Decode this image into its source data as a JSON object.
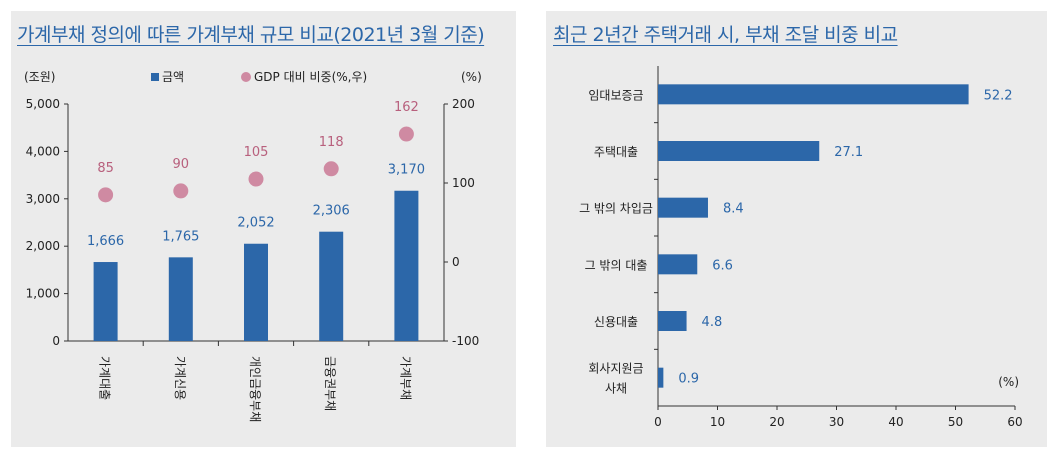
{
  "colors": {
    "bar": "#2c67a9",
    "dot": "#cf8aa2",
    "label_blue": "#2c67a9",
    "label_pink": "#b8607d",
    "axis": "#333333"
  },
  "chart_data": [
    {
      "type": "bar",
      "title": "가계부채 정의에 따른 가계부채 규모 비교(2021년 3월 기준)",
      "categories": [
        "가계대출",
        "가계신용",
        "개인금융부채",
        "금융권부채",
        "가계부채"
      ],
      "series": [
        {
          "name": "금액",
          "type": "bar",
          "axis": "left",
          "values": [
            1666,
            1765,
            2052,
            2306,
            3170
          ],
          "labels": [
            "1,666",
            "1,765",
            "2,052",
            "2,306",
            "3,170"
          ]
        },
        {
          "name": "GDP 대비 비중(%,우)",
          "type": "scatter",
          "axis": "right",
          "values": [
            85,
            90,
            105,
            118,
            162
          ],
          "labels": [
            "85",
            "90",
            "105",
            "118",
            "162"
          ]
        }
      ],
      "y_left": {
        "unit": "(조원)",
        "ylim": [
          0,
          5000
        ],
        "ticks": [
          0,
          1000,
          2000,
          3000,
          4000,
          5000
        ],
        "tick_labels": [
          "0",
          "1,000",
          "2,000",
          "3,000",
          "4,000",
          "5,000"
        ]
      },
      "y_right": {
        "unit": "(%)",
        "ylim": [
          -100,
          200
        ],
        "ticks": [
          -100,
          0,
          100,
          200
        ],
        "tick_labels": [
          "-100",
          "0",
          "100",
          "200"
        ]
      },
      "legend": {
        "placement": "top-center",
        "bar": "금액",
        "dot": "GDP 대비 비중(%,우)"
      }
    },
    {
      "type": "bar",
      "orientation": "horizontal",
      "title": "최근 2년간 주택거래 시, 부채 조달 비중 비교",
      "categories": [
        "임대보증금",
        "주택대출",
        "그 밖의 차입금",
        "그 밖의 대출",
        "신용대출",
        "회사지원금\n사채"
      ],
      "values": [
        52.2,
        27.1,
        8.4,
        6.6,
        4.8,
        0.9
      ],
      "labels": [
        "52.2",
        "27.1",
        "8.4",
        "6.6",
        "4.8",
        "0.9"
      ],
      "x_axis": {
        "unit": "(%)",
        "xlim": [
          0,
          60
        ],
        "ticks": [
          0,
          10,
          20,
          30,
          40,
          50,
          60
        ],
        "tick_labels": [
          "0",
          "10",
          "20",
          "30",
          "40",
          "50",
          "60"
        ]
      }
    }
  ]
}
